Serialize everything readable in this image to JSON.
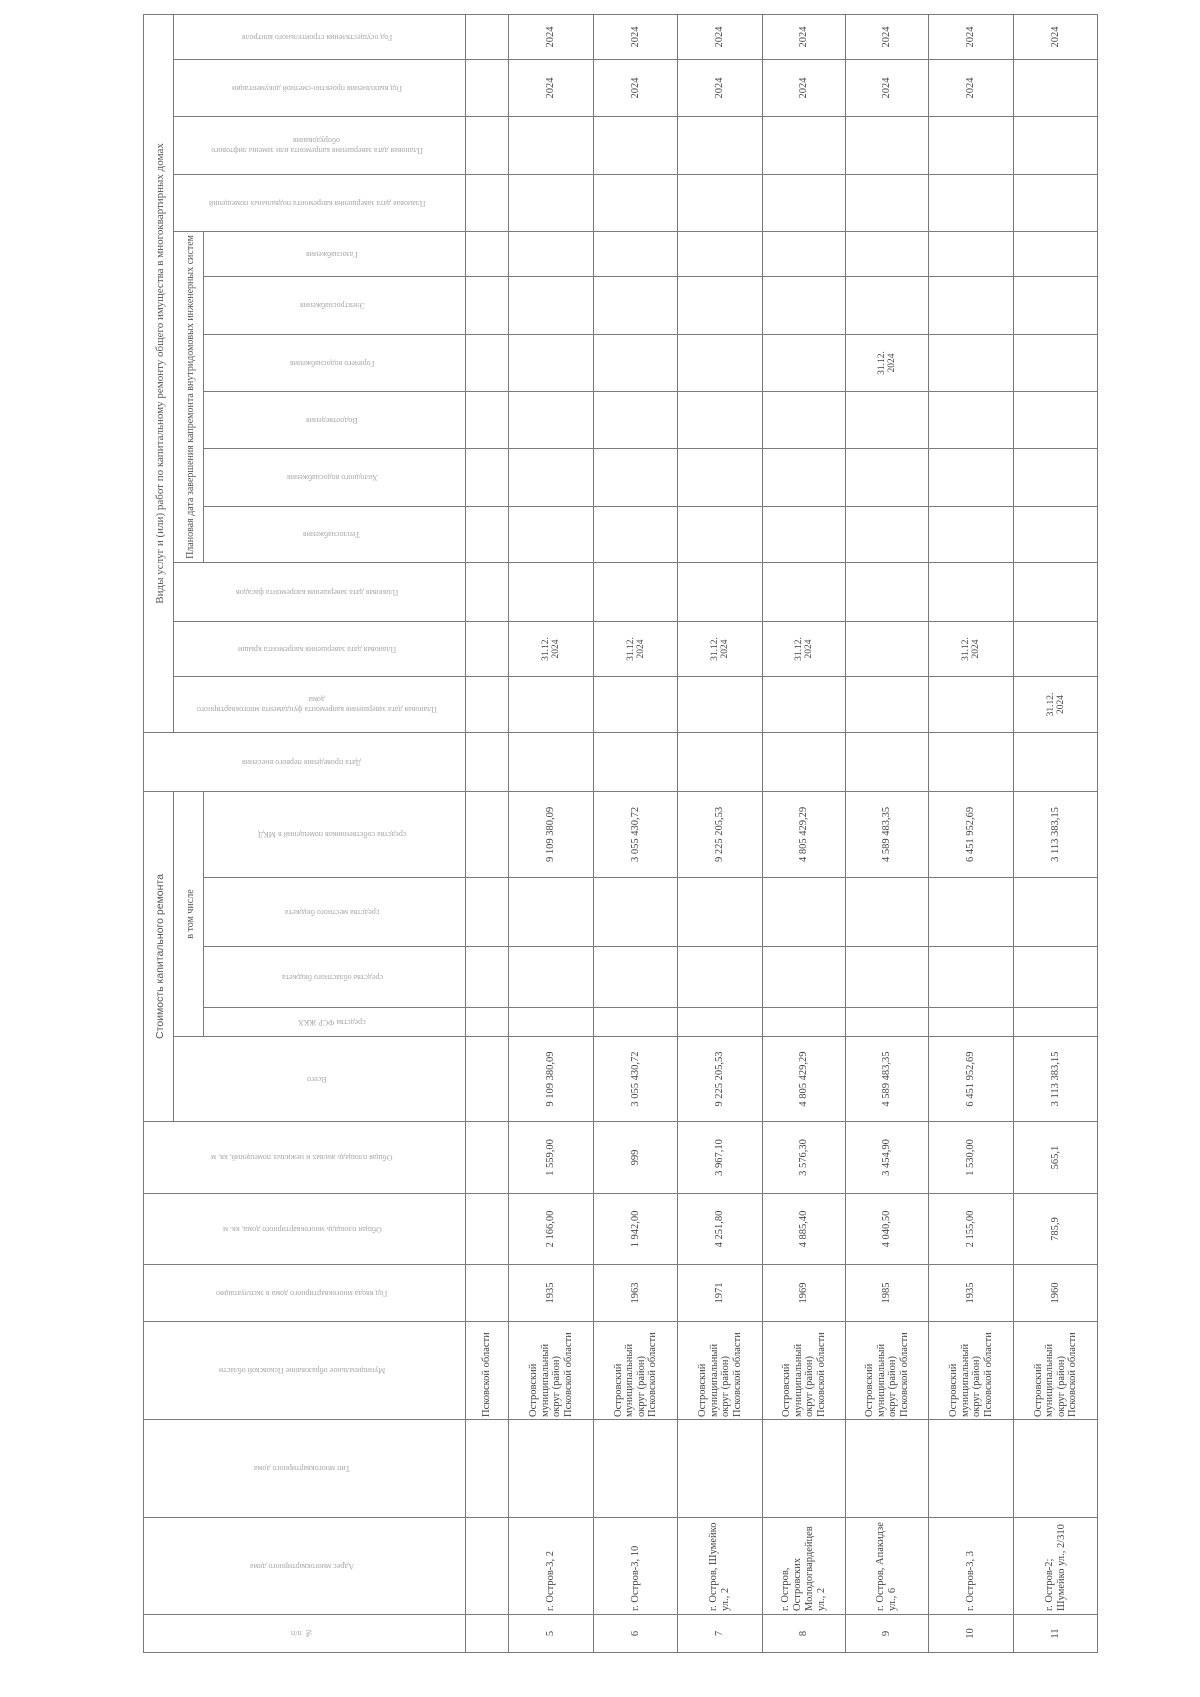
{
  "headers": {
    "num": "№ п/п",
    "address": "Адрес многоквартирного дома",
    "type": "Тип многоквартирного дома",
    "municipality": "Муниципальное образование Псковской области",
    "year_built": "Год ввода многоквартирного дома в эксплуатацию",
    "area_total": "Общая площадь многоквартирного дома, кв. м",
    "area_premises": "Общая площадь жилых и нежилых помещений, кв. м",
    "cost_group": "Стоимость капитального ремонта",
    "cost_total": "Всего",
    "including": "в том числе",
    "cost_fsr": "средства ФСР ЖКХ",
    "cost_regional": "средства областного бюджета",
    "cost_local": "средства местного бюджета",
    "cost_owners": "средства собственников помещений в МКД",
    "first_date": "Дата проведения первого внесения",
    "works_group": "Виды услуг и (или) работ по капитальному ремонту общего имущества в многоквартирных домах",
    "foundation": "Плановая дата завершения капремонта фундамента многоквартирного дома",
    "roof": "Плановая дата завершения капремонта крыши",
    "facade": "Плановая дата завершения капремонта фасадов",
    "systems_group": "Плановая дата завершения капремонта внутридомовых инженерных систем",
    "heat": "Теплоснабжения",
    "cold_water": "Холодного водоснабжения",
    "sewer": "Водоотведения",
    "hot_water": "Горячего водоснабжения",
    "electric": "Электроснабжения",
    "gas": "Газоснабжения",
    "basement": "Плановая дата завершения капремонта подвальных помещений",
    "elevator": "Плановая дата завершения капремонта или замены лифтового оборудования",
    "design_year": "Год выполнения проектно-сметной документации",
    "supervision_year": "Год осуществления строительного контроля"
  },
  "columns": [
    "num",
    "address",
    "type",
    "municipality",
    "year_built",
    "area_total",
    "area_premises",
    "cost_total",
    "cost_fsr",
    "cost_regional",
    "cost_local",
    "cost_owners",
    "first_date",
    "foundation",
    "roof",
    "facade",
    "heat",
    "cold_water",
    "sewer",
    "hot_water",
    "electric",
    "gas",
    "basement",
    "elevator",
    "design_year",
    "supervision_year"
  ],
  "rows": [
    {
      "municipality": "Псковской области"
    },
    {
      "num": "5",
      "address": "г. Остров-3, 2",
      "municipality": "Островский муниципальный округ (район) Псковской области",
      "year_built": "1935",
      "area_total": "2 166,00",
      "area_premises": "1 559,00",
      "cost_total": "9 109 380,09",
      "cost_owners": "9 109 380,09",
      "roof": "31.12. 2024",
      "design_year": "2024",
      "supervision_year": "2024"
    },
    {
      "num": "6",
      "address": "г. Остров-3, 10",
      "municipality": "Островский муниципальный округ (район) Псковской области",
      "year_built": "1963",
      "area_total": "1 942,00",
      "area_premises": "999",
      "cost_total": "3 055 430,72",
      "cost_owners": "3 055 430,72",
      "roof": "31.12. 2024",
      "design_year": "2024",
      "supervision_year": "2024"
    },
    {
      "num": "7",
      "address": "г. Остров, Шумейко ул., 2",
      "municipality": "Островский муниципальный округ (район) Псковской области",
      "year_built": "1971",
      "area_total": "4 251,80",
      "area_premises": "3 967,10",
      "cost_total": "9 225 205,53",
      "cost_owners": "9 225 205,53",
      "roof": "31.12. 2024",
      "design_year": "2024",
      "supervision_year": "2024"
    },
    {
      "num": "8",
      "address": "г. Остров, Островских Молодогвардейцев ул., 2",
      "municipality": "Островский муниципальный округ (район) Псковской области",
      "year_built": "1969",
      "area_total": "4 885,40",
      "area_premises": "3 576,30",
      "cost_total": "4 805 429,29",
      "cost_owners": "4 805 429,29",
      "roof": "31.12. 2024",
      "design_year": "2024",
      "supervision_year": "2024"
    },
    {
      "num": "9",
      "address": "г. Остров, Апакидзе ул., 6",
      "municipality": "Островский муниципальный округ (район) Псковской области",
      "year_built": "1985",
      "area_total": "4 040,50",
      "area_premises": "3 454,90",
      "cost_total": "4 589 483,35",
      "cost_owners": "4 589 483,35",
      "hot_water": "31.12. 2024",
      "design_year": "2024",
      "supervision_year": "2024"
    },
    {
      "num": "10",
      "address": "г. Остров-3, 3",
      "municipality": "Островский муниципальный округ (район) Псковской области",
      "year_built": "1935",
      "area_total": "2 155,00",
      "area_premises": "1 530,00",
      "cost_total": "6 451 952,69",
      "cost_owners": "6 451 952,69",
      "roof": "31.12. 2024",
      "design_year": "2024",
      "supervision_year": "2024"
    },
    {
      "num": "11",
      "address": "г. Остров-2; Шумейко ул., 2/310",
      "municipality": "Островский муниципальный округ (район) Псковской области",
      "year_built": "1960",
      "area_total": "785,9",
      "area_premises": "565,1",
      "cost_total": "3 113 383,15",
      "cost_owners": "3 113 383,15",
      "foundation": "31.12. 2024",
      "supervision_year": "2024"
    }
  ]
}
